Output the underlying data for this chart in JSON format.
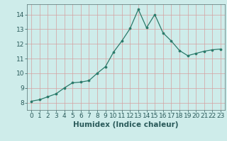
{
  "x": [
    0,
    1,
    2,
    3,
    4,
    5,
    6,
    7,
    8,
    9,
    10,
    11,
    12,
    13,
    14,
    15,
    16,
    17,
    18,
    19,
    20,
    21,
    22,
    23
  ],
  "y": [
    8.1,
    8.2,
    8.4,
    8.6,
    9.0,
    9.35,
    9.4,
    9.5,
    10.0,
    10.45,
    11.45,
    12.2,
    13.05,
    14.35,
    13.1,
    14.0,
    12.75,
    12.2,
    11.55,
    11.2,
    11.35,
    11.5,
    11.6,
    11.65
  ],
  "xlabel": "Humidex (Indice chaleur)",
  "ylim": [
    7.5,
    14.7
  ],
  "xlim": [
    -0.5,
    23.5
  ],
  "yticks": [
    8,
    9,
    10,
    11,
    12,
    13,
    14
  ],
  "xtick_labels": [
    "0",
    "1",
    "2",
    "3",
    "4",
    "5",
    "6",
    "7",
    "8",
    "9",
    "10",
    "11",
    "12",
    "13",
    "14",
    "15",
    "16",
    "17",
    "18",
    "19",
    "20",
    "21",
    "22",
    "23"
  ],
  "line_color": "#2a7a6a",
  "marker_color": "#2a7a6a",
  "bg_color": "#ceecea",
  "grid_color": "#d4a0a0",
  "tick_fontsize": 6.5,
  "xlabel_fontsize": 7.5
}
